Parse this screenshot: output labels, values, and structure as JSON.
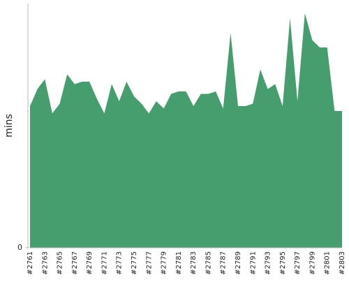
{
  "chart_data": {
    "type": "area",
    "ylabel": "mins",
    "categories": [
      "#2761",
      null,
      "#2763",
      null,
      "#2765",
      null,
      "#2767",
      null,
      "#2769",
      null,
      "#2771",
      null,
      "#2773",
      null,
      "#2775",
      null,
      "#2777",
      null,
      "#2779",
      null,
      "#2781",
      null,
      "#2783",
      null,
      "#2785",
      null,
      "#2787",
      null,
      "#2789",
      null,
      "#2791",
      null,
      "#2793",
      null,
      "#2795",
      null,
      "#2797",
      null,
      "#2799",
      null,
      "#2801",
      null,
      "#2803"
    ],
    "values": [
      58,
      65,
      69,
      55,
      59,
      71,
      67,
      68,
      68,
      61,
      55,
      67,
      60,
      68,
      62,
      59,
      55,
      60,
      57,
      63,
      64,
      64,
      58,
      63,
      63,
      64,
      57,
      88,
      58,
      58,
      59,
      73,
      65,
      67,
      58,
      94,
      60,
      96,
      85,
      82,
      82,
      56,
      56
    ],
    "color": "#469d6e",
    "ylim": [
      0,
      100
    ],
    "yticks": [
      0
    ]
  }
}
